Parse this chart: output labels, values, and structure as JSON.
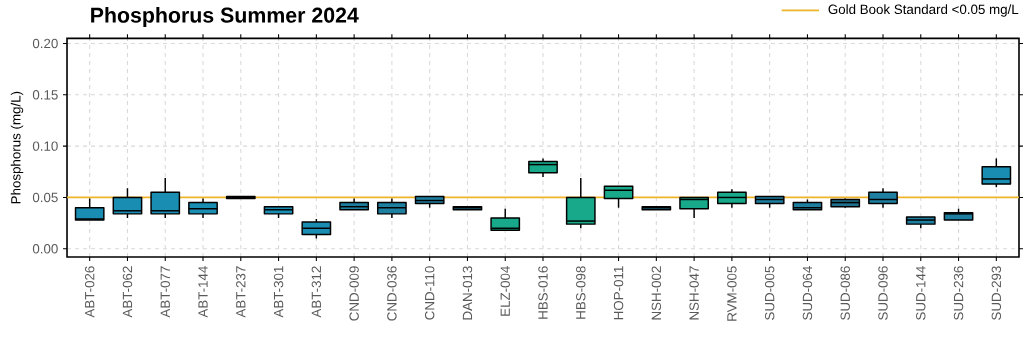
{
  "chart_data": {
    "type": "box",
    "title": "Phosphorus Summer 2024",
    "ylabel": "Phosphorus (mg/L)",
    "categories": [
      "ABT-026",
      "ABT-062",
      "ABT-077",
      "ABT-144",
      "ABT-237",
      "ABT-301",
      "ABT-312",
      "CND-009",
      "CND-036",
      "CND-110",
      "DAN-013",
      "ELZ-004",
      "HBS-016",
      "HBS-098",
      "HOP-011",
      "NSH-002",
      "NSH-047",
      "RVM-005",
      "SUD-005",
      "SUD-064",
      "SUD-086",
      "SUD-096",
      "SUD-144",
      "SUD-236",
      "SUD-293"
    ],
    "boxes": [
      {
        "low": 0.028,
        "q1": 0.028,
        "median": 0.029,
        "q3": 0.04,
        "high": 0.049
      },
      {
        "low": 0.03,
        "q1": 0.034,
        "median": 0.037,
        "q3": 0.05,
        "high": 0.059
      },
      {
        "low": 0.03,
        "q1": 0.034,
        "median": 0.037,
        "q3": 0.055,
        "high": 0.069
      },
      {
        "low": 0.03,
        "q1": 0.034,
        "median": 0.039,
        "q3": 0.045,
        "high": 0.049
      },
      {
        "low": 0.049,
        "q1": 0.049,
        "median": 0.05,
        "q3": 0.051,
        "high": 0.051
      },
      {
        "low": 0.03,
        "q1": 0.034,
        "median": 0.038,
        "q3": 0.041,
        "high": 0.041
      },
      {
        "low": 0.01,
        "q1": 0.014,
        "median": 0.02,
        "q3": 0.026,
        "high": 0.029
      },
      {
        "low": 0.038,
        "q1": 0.038,
        "median": 0.041,
        "q3": 0.045,
        "high": 0.049
      },
      {
        "low": 0.03,
        "q1": 0.034,
        "median": 0.04,
        "q3": 0.045,
        "high": 0.049
      },
      {
        "low": 0.04,
        "q1": 0.044,
        "median": 0.047,
        "q3": 0.051,
        "high": 0.051
      },
      {
        "low": 0.038,
        "q1": 0.038,
        "median": 0.04,
        "q3": 0.041,
        "high": 0.041
      },
      {
        "low": 0.018,
        "q1": 0.018,
        "median": 0.02,
        "q3": 0.03,
        "high": 0.039
      },
      {
        "low": 0.07,
        "q1": 0.074,
        "median": 0.082,
        "q3": 0.085,
        "high": 0.088
      },
      {
        "low": 0.02,
        "q1": 0.024,
        "median": 0.027,
        "q3": 0.05,
        "high": 0.069
      },
      {
        "low": 0.04,
        "q1": 0.049,
        "median": 0.057,
        "q3": 0.061,
        "high": 0.061
      },
      {
        "low": 0.038,
        "q1": 0.038,
        "median": 0.04,
        "q3": 0.041,
        "high": 0.041
      },
      {
        "low": 0.03,
        "q1": 0.039,
        "median": 0.048,
        "q3": 0.05,
        "high": 0.05
      },
      {
        "low": 0.04,
        "q1": 0.044,
        "median": 0.05,
        "q3": 0.055,
        "high": 0.058
      },
      {
        "low": 0.04,
        "q1": 0.044,
        "median": 0.048,
        "q3": 0.051,
        "high": 0.051
      },
      {
        "low": 0.038,
        "q1": 0.038,
        "median": 0.04,
        "q3": 0.045,
        "high": 0.048
      },
      {
        "low": 0.04,
        "q1": 0.041,
        "median": 0.045,
        "q3": 0.048,
        "high": 0.049
      },
      {
        "low": 0.04,
        "q1": 0.044,
        "median": 0.048,
        "q3": 0.055,
        "high": 0.059
      },
      {
        "low": 0.02,
        "q1": 0.024,
        "median": 0.028,
        "q3": 0.031,
        "high": 0.031
      },
      {
        "low": 0.028,
        "q1": 0.028,
        "median": 0.034,
        "q3": 0.035,
        "high": 0.039
      },
      {
        "low": 0.06,
        "q1": 0.063,
        "median": 0.068,
        "q3": 0.08,
        "high": 0.088
      }
    ],
    "colors": [
      "#1a8db3",
      "#1a8db3",
      "#1a8db3",
      "#1a8db3",
      "#1a8db3",
      "#1a8db3",
      "#1a8db3",
      "#1f7fa0",
      "#1f7fa0",
      "#1f7fa0",
      "#1f6f8c",
      "#17a98a",
      "#17a98a",
      "#17a98a",
      "#17a98a",
      "#1f6f8c",
      "#17a98a",
      "#17a98a",
      "#1f7fa0",
      "#1f7fa0",
      "#1f6f8c",
      "#1f7fa0",
      "#1f7fa0",
      "#1f7fa0",
      "#1a8db3"
    ],
    "ylim": [
      -0.008,
      0.205
    ],
    "yticks": [
      {
        "value": 0,
        "label": "0.00"
      },
      {
        "value": 0.05,
        "label": "0.05"
      },
      {
        "value": 0.1,
        "label": "0.10"
      },
      {
        "value": 0.15,
        "label": "0.15"
      },
      {
        "value": 0.2,
        "label": "0.20"
      }
    ],
    "ref_lines": [
      {
        "axis": "y",
        "value": 0.05,
        "label": "Gold Book Standard <0.05 mg/L",
        "color": "#f0b429"
      }
    ],
    "grid": true,
    "legend": "top right"
  }
}
